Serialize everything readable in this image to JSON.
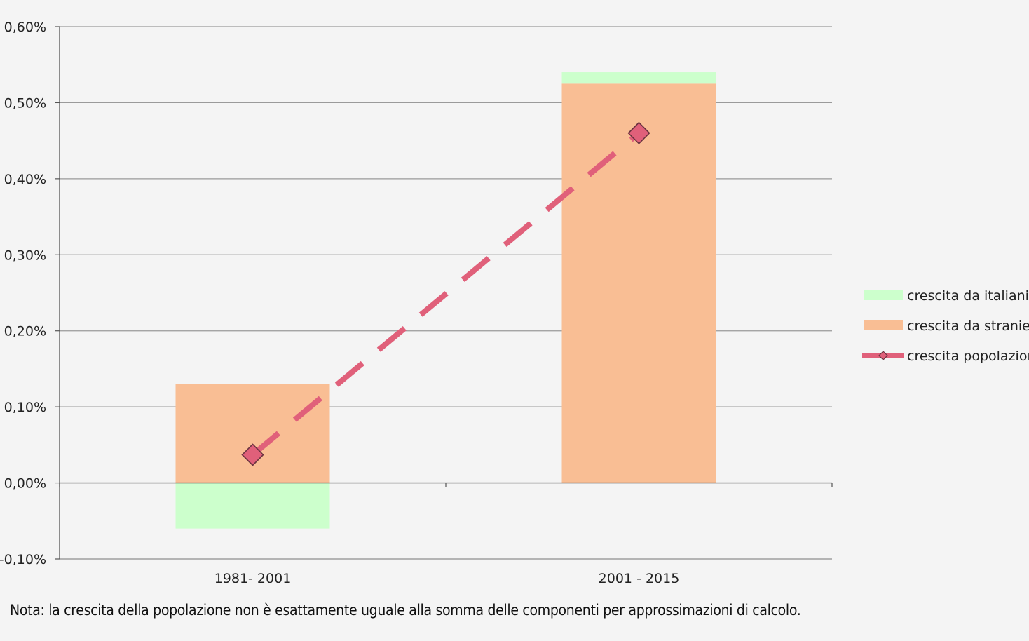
{
  "chart_data": {
    "type": "bar",
    "stacked": true,
    "categories": [
      "1981- 2001",
      "2001 - 2015"
    ],
    "series": [
      {
        "name": "crescita da italiani",
        "kind": "bar",
        "values": [
          -0.0006,
          0.00015
        ],
        "color": "#ccffcc"
      },
      {
        "name": "crescita da stranieri",
        "kind": "bar",
        "values": [
          0.0013,
          0.00525
        ],
        "color": "#f9be94"
      },
      {
        "name": "crescita popolazione",
        "kind": "line",
        "style": "dashed",
        "marker": "diamond",
        "values": [
          0.00037,
          0.0046
        ],
        "color": "#e0607a"
      }
    ],
    "ylim": [
      -0.001,
      0.006
    ],
    "yticks": [
      {
        "value": 0.006,
        "label": "0,60%"
      },
      {
        "value": 0.005,
        "label": "0,50%"
      },
      {
        "value": 0.004,
        "label": "0,40%"
      },
      {
        "value": 0.003,
        "label": "0,30%"
      },
      {
        "value": 0.002,
        "label": "0,20%"
      },
      {
        "value": 0.001,
        "label": "0,10%"
      },
      {
        "value": 0.0,
        "label": "0,00%"
      },
      {
        "value": -0.001,
        "label": "-0,10%"
      }
    ],
    "grid": true,
    "legend_position": "right"
  },
  "note": "Nota: la crescita della popolazione non è esattamente uguale alla somma delle componenti per approssimazioni di calcolo."
}
